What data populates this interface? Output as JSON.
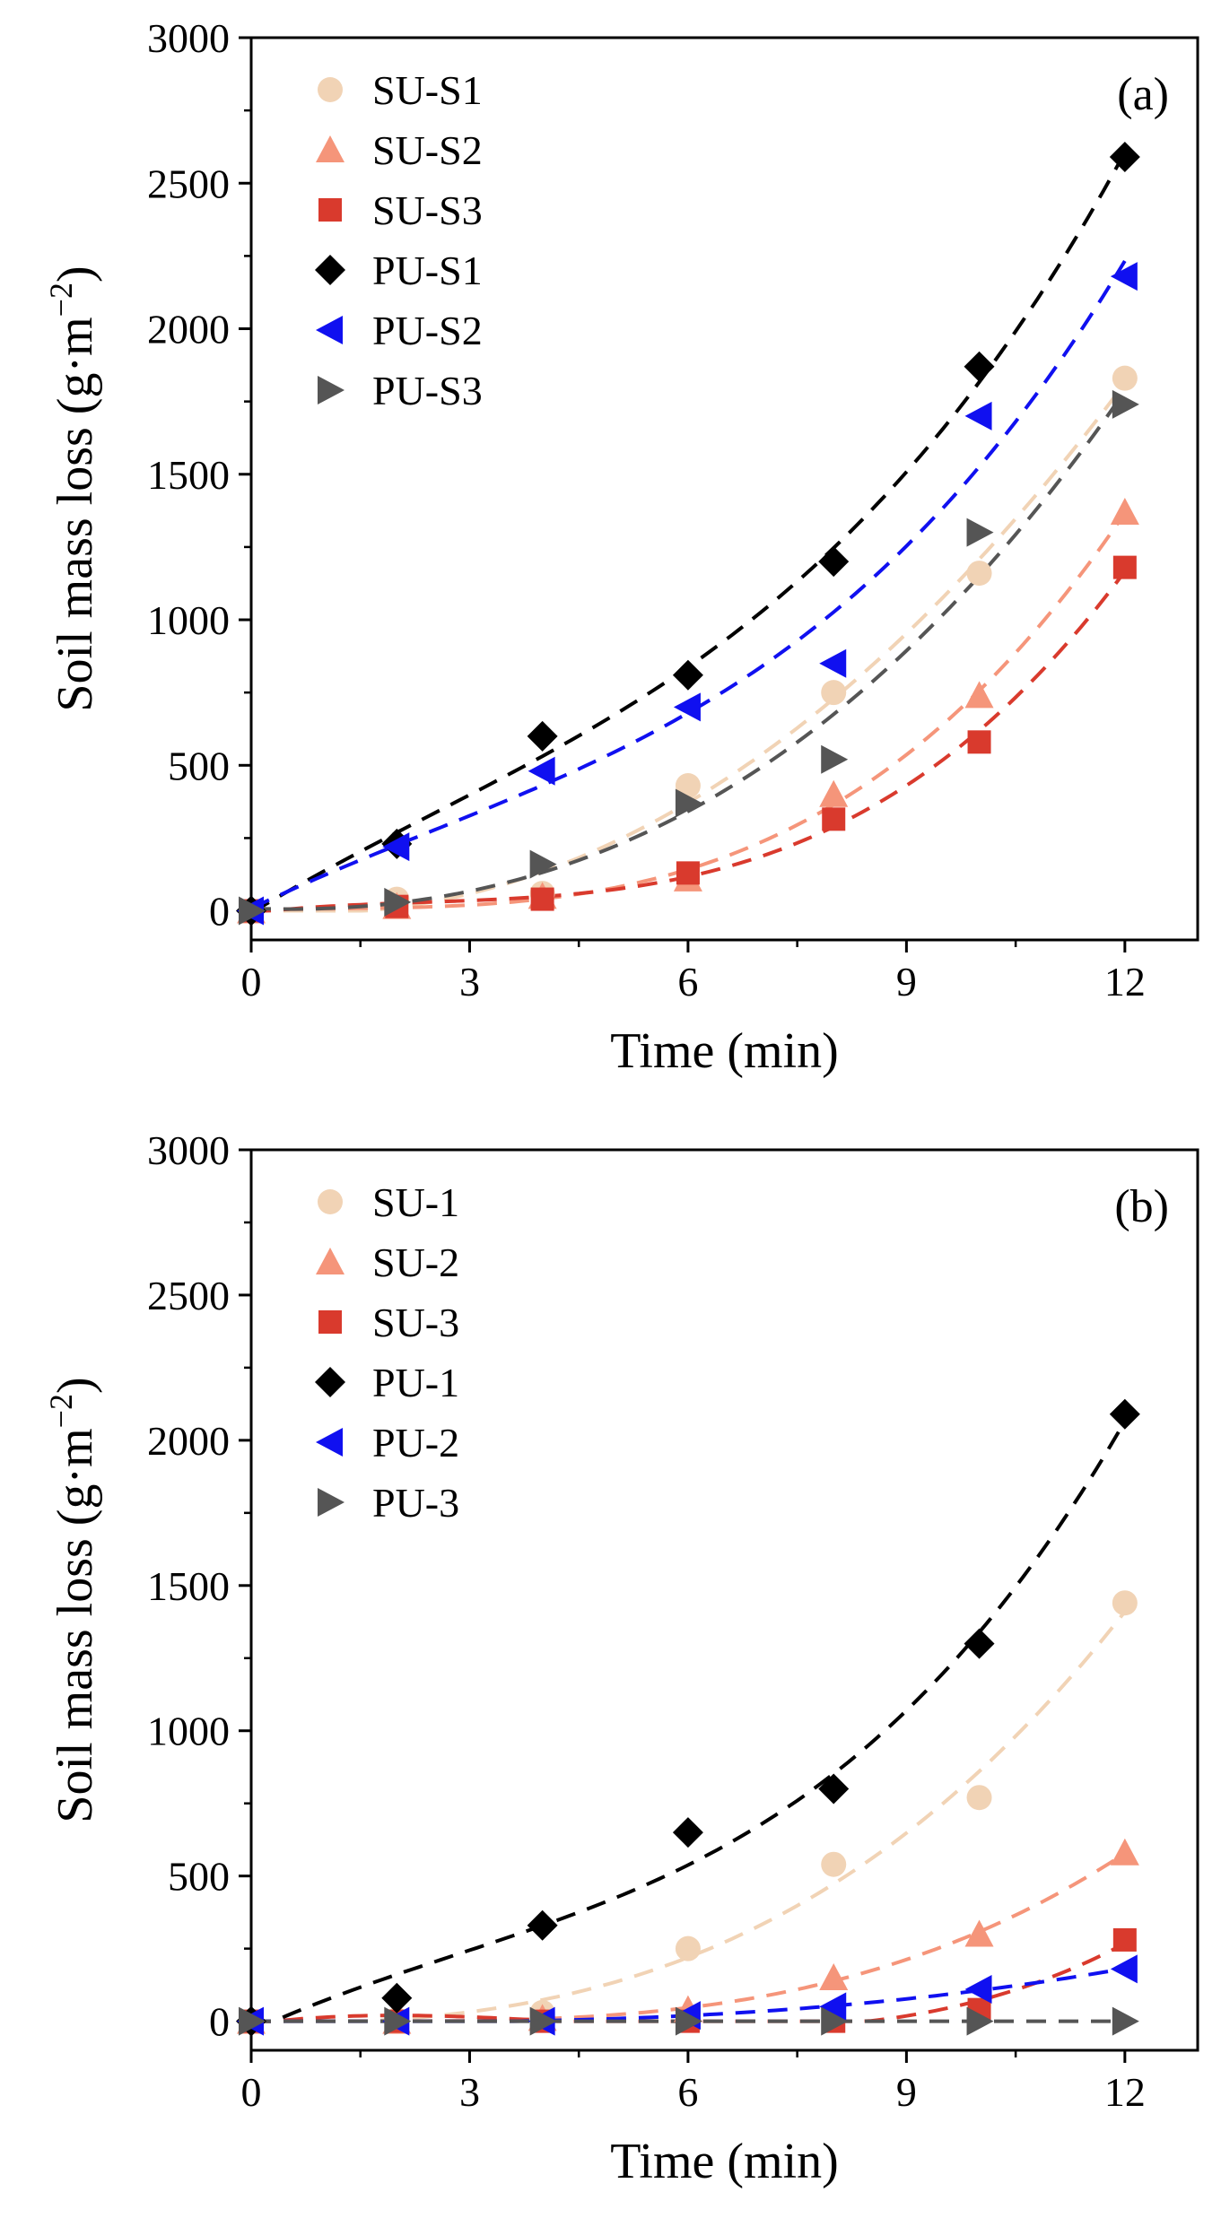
{
  "chart_data": [
    {
      "type": "scatter",
      "panel_label": "(a)",
      "xlabel": "Time (min)",
      "ylabel_main": "Soil mass loss (g·m",
      "ylabel_sup": "−2",
      "ylabel_close": ")",
      "xlim": [
        0,
        13
      ],
      "ylim": [
        -100,
        3000
      ],
      "xticks": [
        0,
        3,
        6,
        9,
        12
      ],
      "yticks": [
        0,
        500,
        1000,
        1500,
        2000,
        2500,
        3000
      ],
      "legend_position": "top-left",
      "fit_lines": "dashed",
      "series": [
        {
          "name": "SU-S1",
          "marker": "circle",
          "color": "#f1d3b5",
          "x": [
            0,
            2,
            4,
            6,
            8,
            10,
            12
          ],
          "y": [
            0,
            40,
            60,
            430,
            750,
            1160,
            1830
          ]
        },
        {
          "name": "SU-S2",
          "marker": "triangle-up",
          "color": "#f5957a",
          "x": [
            0,
            2,
            4,
            6,
            8,
            10,
            12
          ],
          "y": [
            0,
            15,
            50,
            110,
            400,
            740,
            1370
          ]
        },
        {
          "name": "SU-S3",
          "marker": "square",
          "color": "#d93a2d",
          "x": [
            0,
            2,
            4,
            6,
            8,
            10,
            12
          ],
          "y": [
            0,
            15,
            40,
            130,
            315,
            580,
            1180
          ]
        },
        {
          "name": "PU-S1",
          "marker": "diamond",
          "color": "#000000",
          "x": [
            0,
            2,
            4,
            6,
            8,
            10,
            12
          ],
          "y": [
            0,
            230,
            600,
            810,
            1200,
            1870,
            2590
          ]
        },
        {
          "name": "PU-S2",
          "marker": "triangle-left",
          "color": "#1010f0",
          "x": [
            0,
            2,
            4,
            6,
            8,
            10,
            12
          ],
          "y": [
            0,
            220,
            480,
            700,
            850,
            1700,
            2180
          ]
        },
        {
          "name": "PU-S3",
          "marker": "triangle-right",
          "color": "#555555",
          "x": [
            0,
            2,
            4,
            6,
            8,
            10,
            12
          ],
          "y": [
            0,
            30,
            160,
            370,
            520,
            1300,
            1740
          ]
        }
      ]
    },
    {
      "type": "scatter",
      "panel_label": "(b)",
      "xlabel": "Time (min)",
      "ylabel_main": "Soil mass loss (g·m",
      "ylabel_sup": "−2",
      "ylabel_close": ")",
      "xlim": [
        0,
        13
      ],
      "ylim": [
        -100,
        3000
      ],
      "xticks": [
        0,
        3,
        6,
        9,
        12
      ],
      "yticks": [
        0,
        500,
        1000,
        1500,
        2000,
        2500,
        3000
      ],
      "legend_position": "top-left",
      "fit_lines": "dashed",
      "series": [
        {
          "name": "SU-1",
          "marker": "circle",
          "color": "#f1d3b5",
          "x": [
            0,
            2,
            4,
            6,
            8,
            10,
            12
          ],
          "y": [
            0,
            5,
            30,
            250,
            540,
            770,
            1440
          ]
        },
        {
          "name": "SU-2",
          "marker": "triangle-up",
          "color": "#f5957a",
          "x": [
            0,
            2,
            4,
            6,
            8,
            10,
            12
          ],
          "y": [
            0,
            0,
            10,
            40,
            150,
            300,
            580
          ]
        },
        {
          "name": "SU-3",
          "marker": "square",
          "color": "#d93a2d",
          "x": [
            0,
            2,
            4,
            6,
            8,
            10,
            12
          ],
          "y": [
            0,
            0,
            0,
            0,
            0,
            40,
            280
          ]
        },
        {
          "name": "PU-1",
          "marker": "diamond",
          "color": "#000000",
          "x": [
            0,
            2,
            4,
            6,
            8,
            10,
            12
          ],
          "y": [
            0,
            80,
            330,
            650,
            800,
            1300,
            2090
          ]
        },
        {
          "name": "PU-2",
          "marker": "triangle-left",
          "color": "#1010f0",
          "x": [
            0,
            2,
            4,
            6,
            8,
            10,
            12
          ],
          "y": [
            0,
            0,
            0,
            20,
            50,
            110,
            180
          ]
        },
        {
          "name": "PU-3",
          "marker": "triangle-right",
          "color": "#555555",
          "x": [
            0,
            2,
            4,
            6,
            8,
            10,
            12
          ],
          "y": [
            0,
            0,
            0,
            0,
            0,
            0,
            0
          ]
        }
      ]
    }
  ]
}
